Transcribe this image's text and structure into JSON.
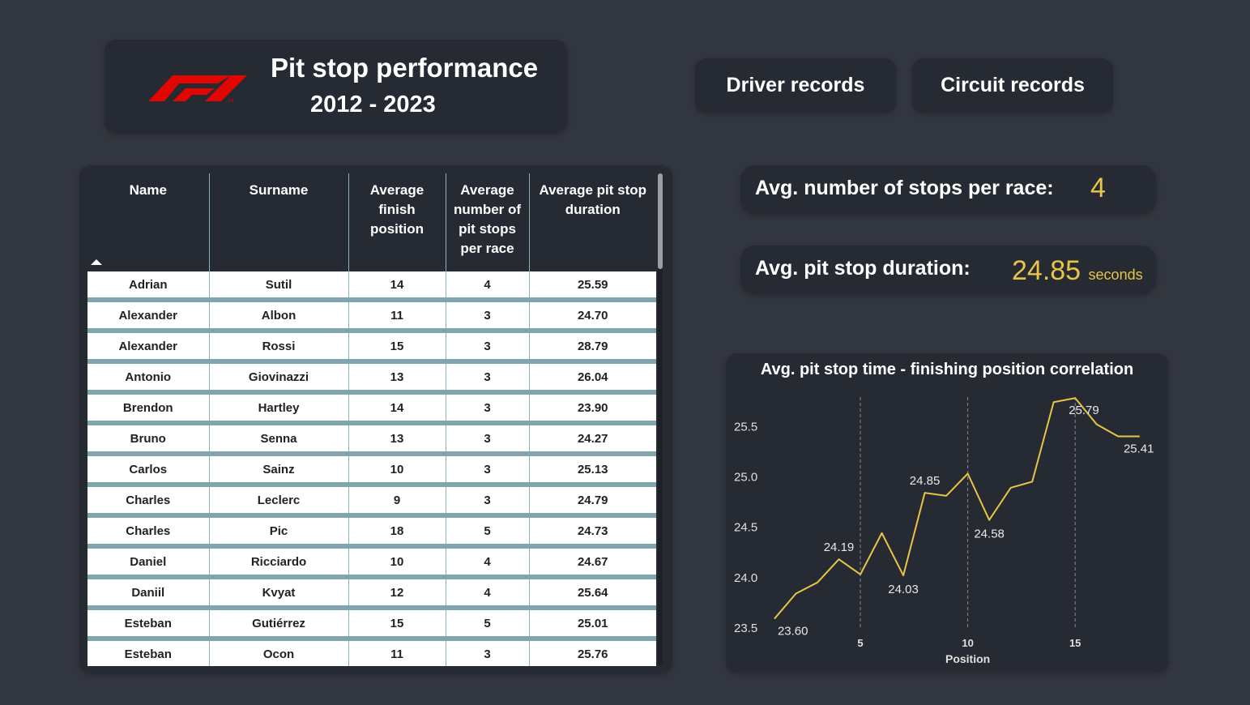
{
  "header": {
    "title": "Pit stop performance",
    "years": "2012 - 2023",
    "logo_icon": "f1-logo"
  },
  "nav": {
    "driver_records": "Driver records",
    "circuit_records": "Circuit records"
  },
  "table": {
    "columns": [
      "Name",
      "Surname",
      "Average finish position",
      "Average number of pit stops per race",
      "Average pit stop duration"
    ],
    "sorted_column": "Name",
    "rows": [
      [
        "Adrian",
        "Sutil",
        "14",
        "4",
        "25.59"
      ],
      [
        "Alexander",
        "Albon",
        "11",
        "3",
        "24.70"
      ],
      [
        "Alexander",
        "Rossi",
        "15",
        "3",
        "28.79"
      ],
      [
        "Antonio",
        "Giovinazzi",
        "13",
        "3",
        "26.04"
      ],
      [
        "Brendon",
        "Hartley",
        "14",
        "3",
        "23.90"
      ],
      [
        "Bruno",
        "Senna",
        "13",
        "3",
        "24.27"
      ],
      [
        "Carlos",
        "Sainz",
        "10",
        "3",
        "25.13"
      ],
      [
        "Charles",
        "Leclerc",
        "9",
        "3",
        "24.79"
      ],
      [
        "Charles",
        "Pic",
        "18",
        "5",
        "24.73"
      ],
      [
        "Daniel",
        "Ricciardo",
        "10",
        "4",
        "24.67"
      ],
      [
        "Daniil",
        "Kvyat",
        "12",
        "4",
        "25.64"
      ],
      [
        "Esteban",
        "Gutiérrez",
        "15",
        "5",
        "25.01"
      ],
      [
        "Esteban",
        "Ocon",
        "11",
        "3",
        "25.76"
      ]
    ]
  },
  "kpis": {
    "stops_label": "Avg. number of stops per race:",
    "stops_value": "4",
    "duration_label": "Avg. pit stop duration:",
    "duration_value": "24.85",
    "duration_unit": "seconds"
  },
  "colors": {
    "background": "#32363f",
    "card": "#262a32",
    "accent": "#e8c547",
    "f1_red": "#e10600"
  },
  "chart_data": {
    "type": "line",
    "title": "Avg. pit stop time - finishing position correlation",
    "xlabel": "Position",
    "ylabel": "",
    "x": [
      1,
      2,
      3,
      4,
      5,
      6,
      7,
      8,
      9,
      10,
      11,
      12,
      13,
      14,
      15,
      16,
      17,
      18
    ],
    "values": [
      23.6,
      23.85,
      23.96,
      24.19,
      24.04,
      24.45,
      24.03,
      24.85,
      24.82,
      25.04,
      24.58,
      24.9,
      24.96,
      25.75,
      25.79,
      25.53,
      25.41,
      25.41
    ],
    "data_labels": [
      {
        "x": 1,
        "label": "23.60"
      },
      {
        "x": 4,
        "label": "24.19"
      },
      {
        "x": 7,
        "label": "24.03"
      },
      {
        "x": 8,
        "label": "24.85"
      },
      {
        "x": 11,
        "label": "24.58"
      },
      {
        "x": 15,
        "label": "25.79"
      },
      {
        "x": 18,
        "label": "25.41"
      }
    ],
    "yticks": [
      "23.5",
      "24.0",
      "24.5",
      "25.0",
      "25.5"
    ],
    "xticks": [
      "5",
      "10",
      "15"
    ],
    "ylim": [
      23.5,
      25.8
    ],
    "xlim": [
      0.7,
      18.5
    ],
    "grid": "vertical dashed",
    "line_color": "#e8c547"
  }
}
